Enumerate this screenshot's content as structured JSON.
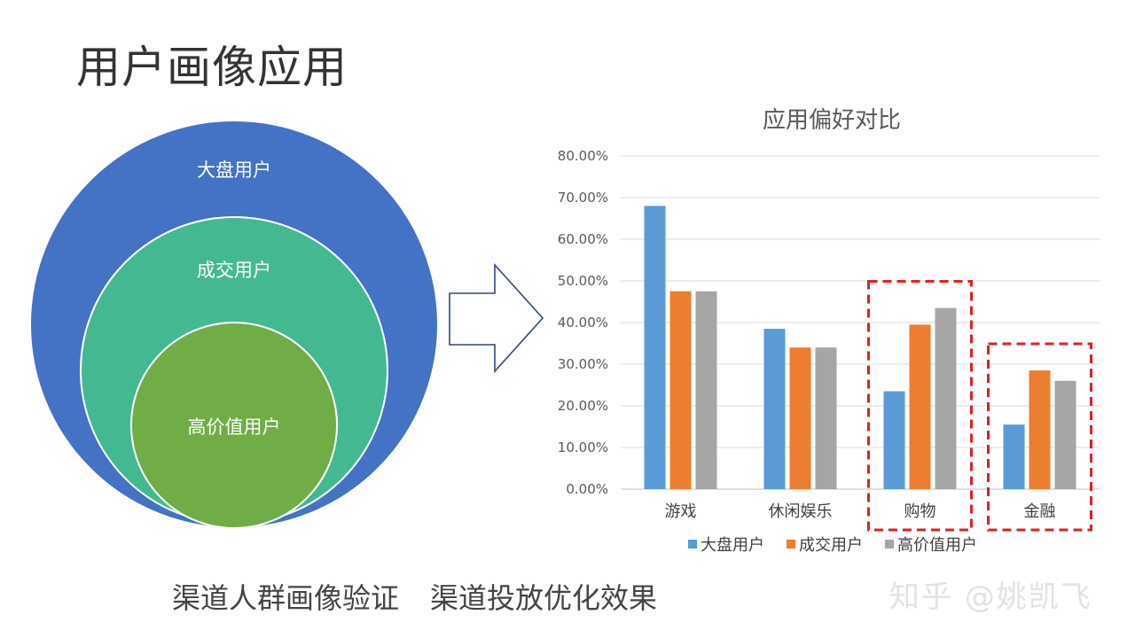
{
  "slide": {
    "title": "用户画像应用",
    "caption_left": "渠道人群画像验证",
    "caption_right": "渠道投放优化效果",
    "watermark": "知乎 @姚凯飞"
  },
  "circles": [
    {
      "label": "大盘用户",
      "color": "#4472c4"
    },
    {
      "label": "成交用户",
      "color": "#44b991"
    },
    {
      "label": "高价值用户",
      "color": "#70ad47"
    }
  ],
  "chart_data": {
    "type": "bar",
    "title": "应用偏好对比",
    "categories": [
      "游戏",
      "休闲娱乐",
      "购物",
      "金融"
    ],
    "series": [
      {
        "name": "大盘用户",
        "color": "#5b9bd5",
        "values": [
          68.0,
          38.5,
          23.5,
          15.5
        ]
      },
      {
        "name": "成交用户",
        "color": "#ed7d31",
        "values": [
          47.5,
          34.0,
          39.5,
          28.5
        ]
      },
      {
        "name": "高价值用户",
        "color": "#a5a5a5",
        "values": [
          47.5,
          34.0,
          43.5,
          26.0
        ]
      }
    ],
    "ylim": [
      0,
      80
    ],
    "yticks": [
      "0.00%",
      "10.00%",
      "20.00%",
      "30.00%",
      "40.00%",
      "50.00%",
      "60.00%",
      "70.00%",
      "80.00%"
    ],
    "grid": true,
    "legend": "bottom",
    "highlighted_categories": [
      "购物",
      "金融"
    ],
    "highlight_color": "#e02020"
  }
}
